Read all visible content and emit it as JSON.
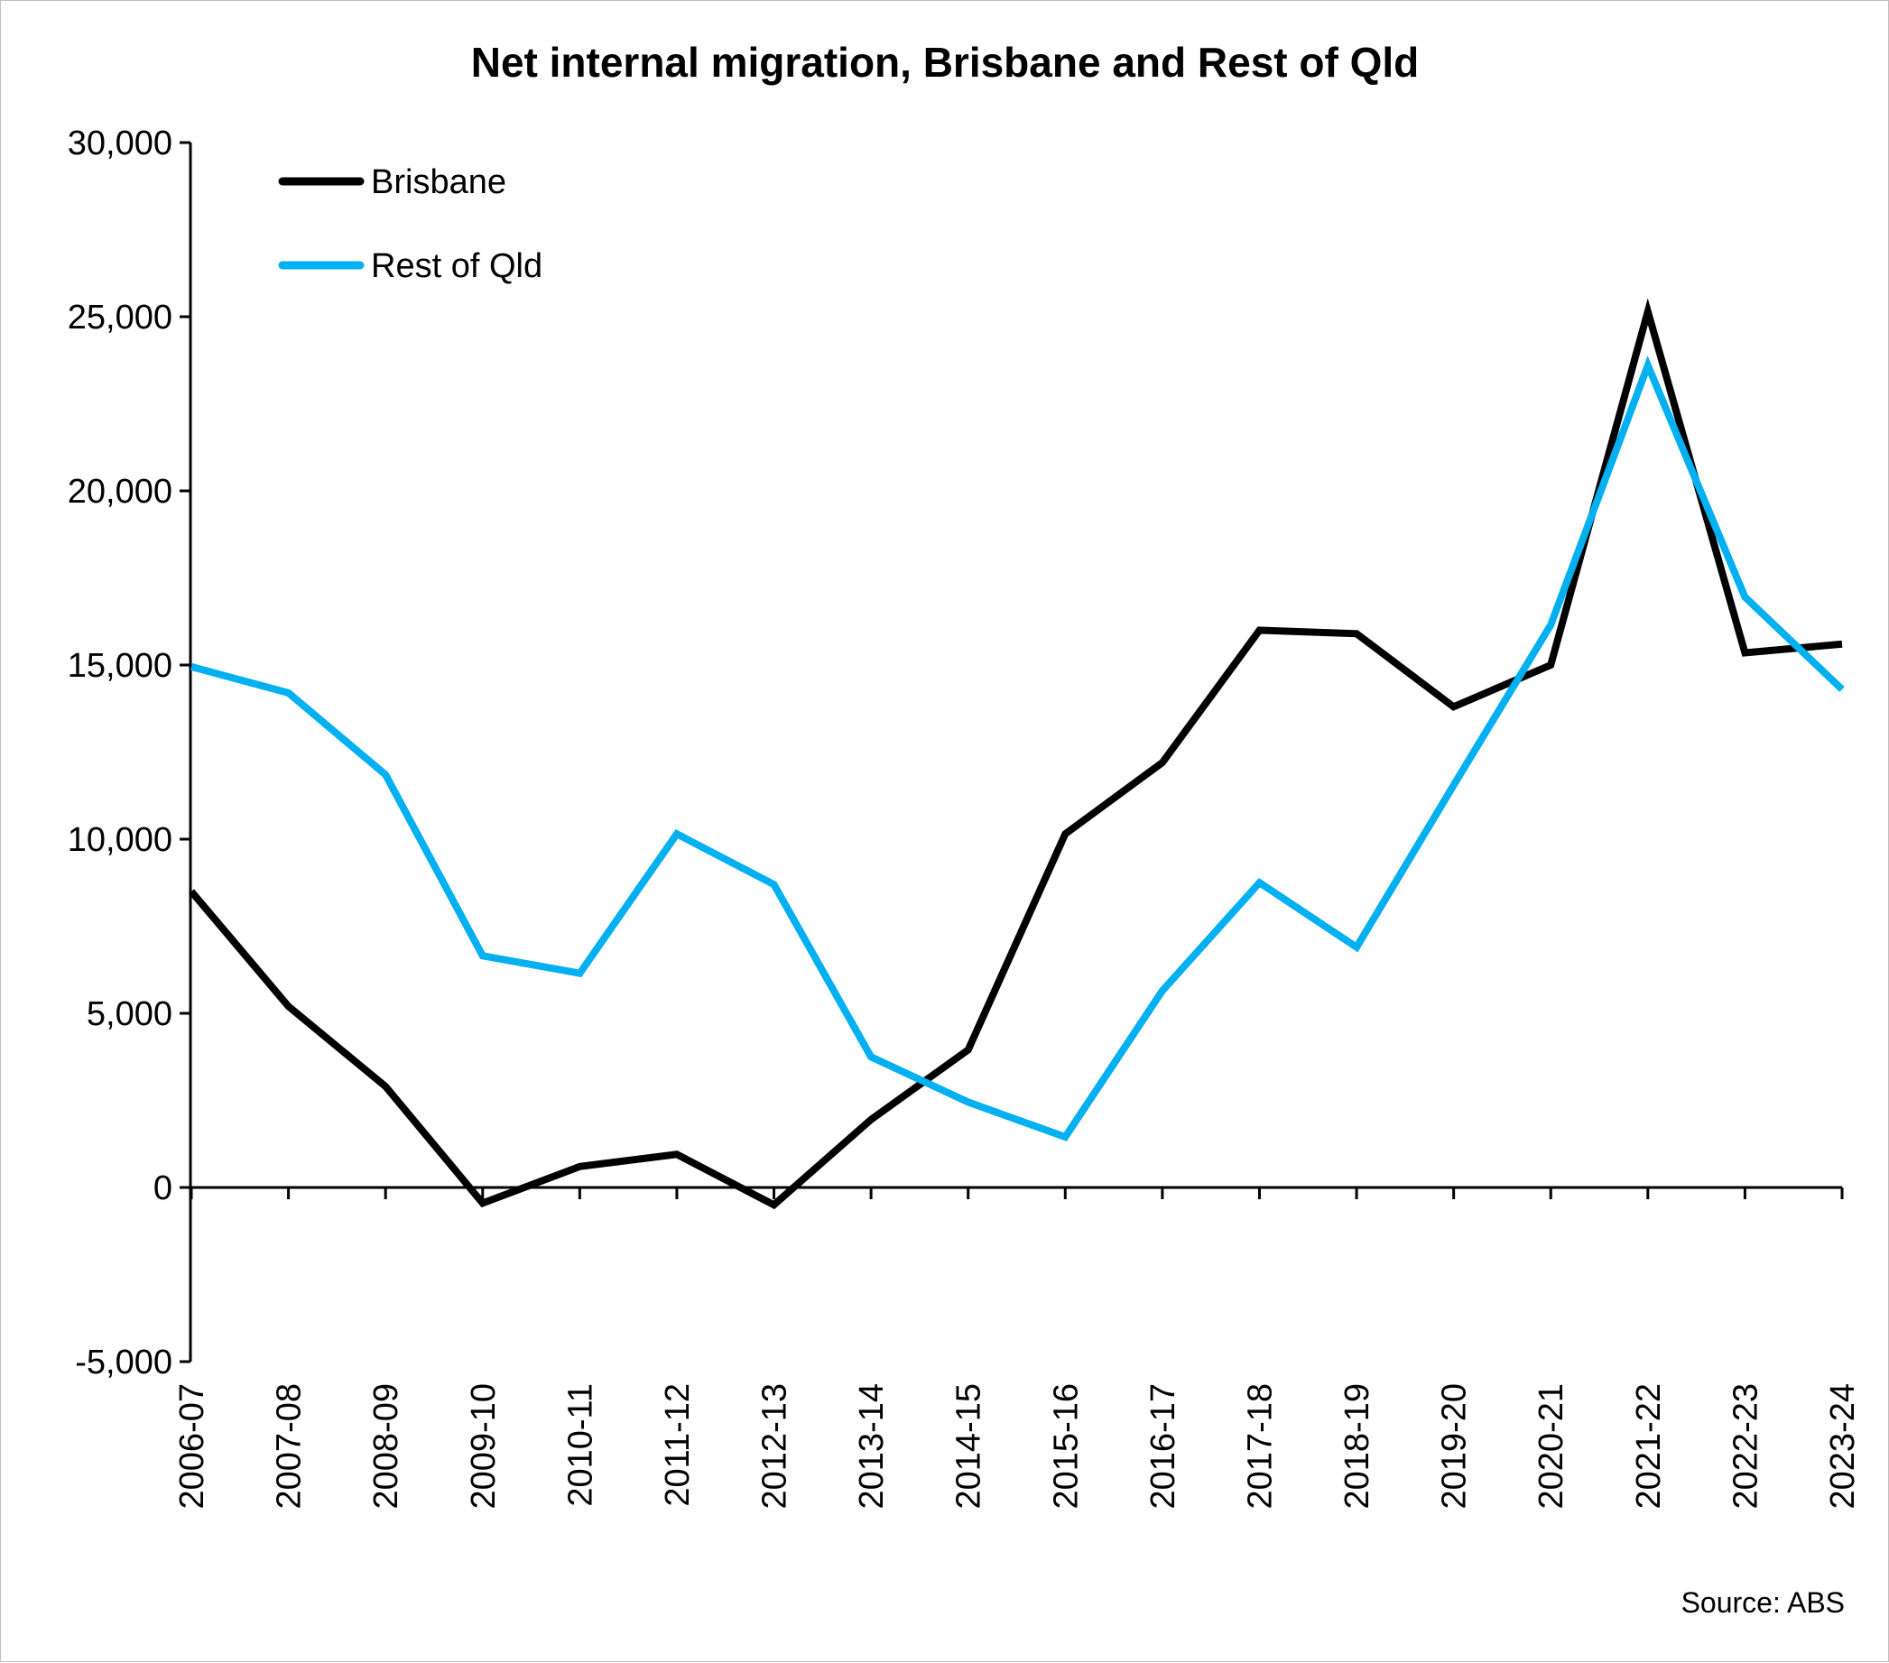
{
  "chart_data": {
    "type": "line",
    "title": "Net internal migration, Brisbane and Rest of Qld",
    "source": "Source: ABS",
    "xlabel": "",
    "ylabel": "",
    "ylim": [
      -5000,
      30000
    ],
    "yticks": [
      -5000,
      0,
      5000,
      10000,
      15000,
      20000,
      25000,
      30000
    ],
    "ytick_labels": [
      "-5,000",
      "0",
      "5,000",
      "10,000",
      "15,000",
      "20,000",
      "25,000",
      "30,000"
    ],
    "grid": false,
    "legend_position": "top-left",
    "categories": [
      "2006-07",
      "2007-08",
      "2008-09",
      "2009-10",
      "2010-11",
      "2011-12",
      "2012-13",
      "2013-14",
      "2014-15",
      "2015-16",
      "2016-17",
      "2017-18",
      "2018-19",
      "2019-20",
      "2020-21",
      "2021-22",
      "2022-23",
      "2023-24"
    ],
    "series": [
      {
        "name": "Brisbane",
        "color": "#000000",
        "values": [
          8500,
          5200,
          2900,
          -450,
          600,
          950,
          -500,
          1950,
          3950,
          10150,
          12200,
          16000,
          15900,
          13800,
          15000,
          25150,
          15350,
          15600
        ]
      },
      {
        "name": "Rest of Qld",
        "color": "#00b0f0",
        "values": [
          14950,
          14200,
          11850,
          6650,
          6150,
          10150,
          8700,
          3750,
          2450,
          1450,
          5650,
          8750,
          6900,
          11550,
          16150,
          23600,
          16950,
          14300
        ]
      }
    ]
  }
}
